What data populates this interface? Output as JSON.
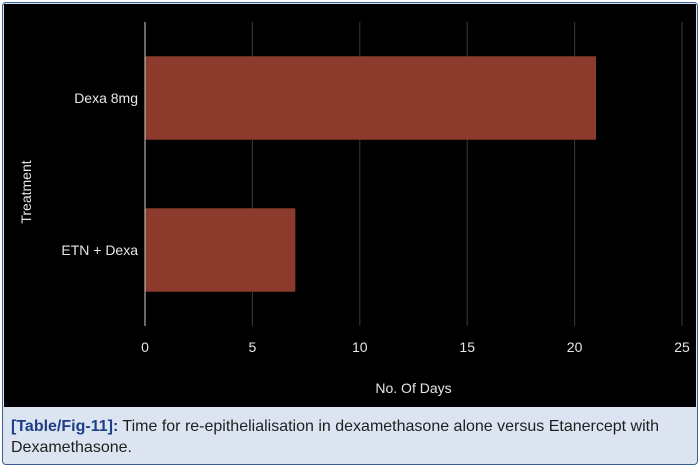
{
  "chart_data": {
    "type": "bar",
    "orientation": "horizontal",
    "categories": [
      "Dexa 8mg",
      "ETN + Dexa"
    ],
    "values": [
      21,
      7
    ],
    "xlabel": "No. Of Days",
    "ylabel": "Treatment",
    "xlim": [
      0,
      25
    ],
    "xticks": [
      0,
      5,
      10,
      15,
      20,
      25
    ],
    "grid": "vertical",
    "legend": "none",
    "bar_color": "#8b3a2c",
    "background_color": "#000000",
    "grid_color": "#3a3a3a",
    "axis_color": "#cfcfcf"
  },
  "caption": {
    "label": "[Table/Fig-11]:",
    "text": " Time for re-epithelialisation in dexamethasone alone versus Etanercept with Dexamethasone."
  }
}
